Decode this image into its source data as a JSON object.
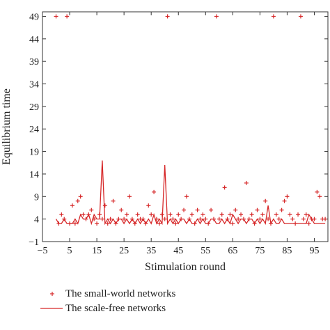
{
  "chart_data": {
    "type": "scatter",
    "xlabel": "Stimulation round",
    "ylabel": "Equilibrium time",
    "xlim": [
      -5,
      100
    ],
    "ylim": [
      -1,
      50
    ],
    "x_ticks": [
      -5,
      5,
      15,
      25,
      35,
      45,
      55,
      65,
      75,
      85,
      95
    ],
    "x_tick_labels": [
      "−5",
      "5",
      "15",
      "25",
      "35",
      "45",
      "55",
      "65",
      "75",
      "85",
      "95"
    ],
    "y_ticks": [
      -1,
      4,
      9,
      14,
      19,
      24,
      29,
      34,
      39,
      44,
      49
    ],
    "y_tick_labels": [
      "−1",
      "4",
      "9",
      "14",
      "19",
      "24",
      "29",
      "34",
      "39",
      "44",
      "49"
    ],
    "grid": false,
    "legend_position": "bottom",
    "series": [
      {
        "name": "The small-world networks",
        "type": "scatter",
        "marker": "+",
        "color": "#d62728",
        "points": [
          [
            0,
            49
          ],
          [
            1,
            3
          ],
          [
            2,
            5
          ],
          [
            3,
            4
          ],
          [
            4,
            49
          ],
          [
            5,
            3
          ],
          [
            6,
            7
          ],
          [
            7,
            3
          ],
          [
            8,
            8
          ],
          [
            9,
            9
          ],
          [
            10,
            5
          ],
          [
            11,
            4
          ],
          [
            12,
            5
          ],
          [
            13,
            6
          ],
          [
            14,
            4
          ],
          [
            15,
            3
          ],
          [
            16,
            5
          ],
          [
            17,
            4
          ],
          [
            18,
            7
          ],
          [
            19,
            3
          ],
          [
            20,
            4
          ],
          [
            21,
            8
          ],
          [
            22,
            3
          ],
          [
            23,
            4
          ],
          [
            24,
            6
          ],
          [
            25,
            4
          ],
          [
            26,
            5
          ],
          [
            27,
            9
          ],
          [
            28,
            4
          ],
          [
            29,
            3
          ],
          [
            30,
            5
          ],
          [
            31,
            4
          ],
          [
            32,
            4
          ],
          [
            33,
            3
          ],
          [
            34,
            7
          ],
          [
            35,
            5
          ],
          [
            36,
            10
          ],
          [
            37,
            4
          ],
          [
            38,
            3
          ],
          [
            39,
            5
          ],
          [
            40,
            4
          ],
          [
            41,
            49
          ],
          [
            42,
            5
          ],
          [
            43,
            4
          ],
          [
            44,
            3
          ],
          [
            45,
            5
          ],
          [
            46,
            4
          ],
          [
            47,
            6
          ],
          [
            48,
            9
          ],
          [
            49,
            4
          ],
          [
            50,
            5
          ],
          [
            51,
            3
          ],
          [
            52,
            6
          ],
          [
            53,
            4
          ],
          [
            54,
            5
          ],
          [
            55,
            4
          ],
          [
            56,
            3
          ],
          [
            57,
            6
          ],
          [
            58,
            4
          ],
          [
            59,
            49
          ],
          [
            60,
            4
          ],
          [
            61,
            5
          ],
          [
            62,
            11
          ],
          [
            63,
            4
          ],
          [
            64,
            5
          ],
          [
            65,
            3
          ],
          [
            66,
            6
          ],
          [
            67,
            4
          ],
          [
            68,
            5
          ],
          [
            69,
            4
          ],
          [
            70,
            12
          ],
          [
            71,
            4
          ],
          [
            72,
            5
          ],
          [
            73,
            3
          ],
          [
            74,
            6
          ],
          [
            75,
            4
          ],
          [
            76,
            5
          ],
          [
            77,
            8
          ],
          [
            78,
            4
          ],
          [
            79,
            3
          ],
          [
            80,
            49
          ],
          [
            81,
            5
          ],
          [
            82,
            4
          ],
          [
            83,
            6
          ],
          [
            84,
            8
          ],
          [
            85,
            9
          ],
          [
            86,
            5
          ],
          [
            87,
            4
          ],
          [
            88,
            3
          ],
          [
            89,
            5
          ],
          [
            90,
            49
          ],
          [
            91,
            4
          ],
          [
            92,
            5
          ],
          [
            93,
            3
          ],
          [
            94,
            4
          ],
          [
            95,
            4
          ],
          [
            96,
            10
          ],
          [
            97,
            9
          ],
          [
            98,
            4
          ],
          [
            99,
            4
          ]
        ]
      },
      {
        "name": "The scale-free networks",
        "type": "line",
        "color": "#d62728",
        "x": [
          0,
          1,
          2,
          3,
          4,
          5,
          6,
          7,
          8,
          9,
          10,
          11,
          12,
          13,
          14,
          15,
          16,
          17,
          18,
          19,
          20,
          21,
          22,
          23,
          24,
          25,
          26,
          27,
          28,
          29,
          30,
          31,
          32,
          33,
          34,
          35,
          36,
          37,
          38,
          39,
          40,
          41,
          42,
          43,
          44,
          45,
          46,
          47,
          48,
          49,
          50,
          51,
          52,
          53,
          54,
          55,
          56,
          57,
          58,
          59,
          60,
          61,
          62,
          63,
          64,
          65,
          66,
          67,
          68,
          69,
          70,
          71,
          72,
          73,
          74,
          75,
          76,
          77,
          78,
          79,
          80,
          81,
          82,
          83,
          84,
          85,
          86,
          87,
          88,
          89,
          90,
          91,
          92,
          93,
          94,
          95,
          96,
          97,
          98,
          99
        ],
        "y": [
          4,
          3,
          3,
          4,
          3,
          3,
          3,
          4,
          3,
          5,
          4,
          4,
          5,
          3,
          5,
          4,
          4,
          17,
          3,
          4,
          3,
          4,
          3,
          4,
          4,
          3,
          4,
          3,
          4,
          3,
          4,
          3,
          4,
          3,
          4,
          3,
          5,
          3,
          4,
          3,
          16,
          3,
          4,
          3,
          4,
          3,
          4,
          4,
          3,
          4,
          3,
          3,
          4,
          3,
          4,
          3,
          3,
          4,
          4,
          3,
          3,
          4,
          3,
          4,
          3,
          5,
          4,
          3,
          4,
          4,
          3,
          4,
          4,
          3,
          4,
          3,
          4,
          3,
          7,
          3,
          4,
          3,
          3,
          4,
          3,
          3,
          3,
          3,
          3,
          3,
          3,
          3,
          3,
          5,
          4,
          3,
          3,
          3,
          3,
          3
        ]
      }
    ]
  }
}
